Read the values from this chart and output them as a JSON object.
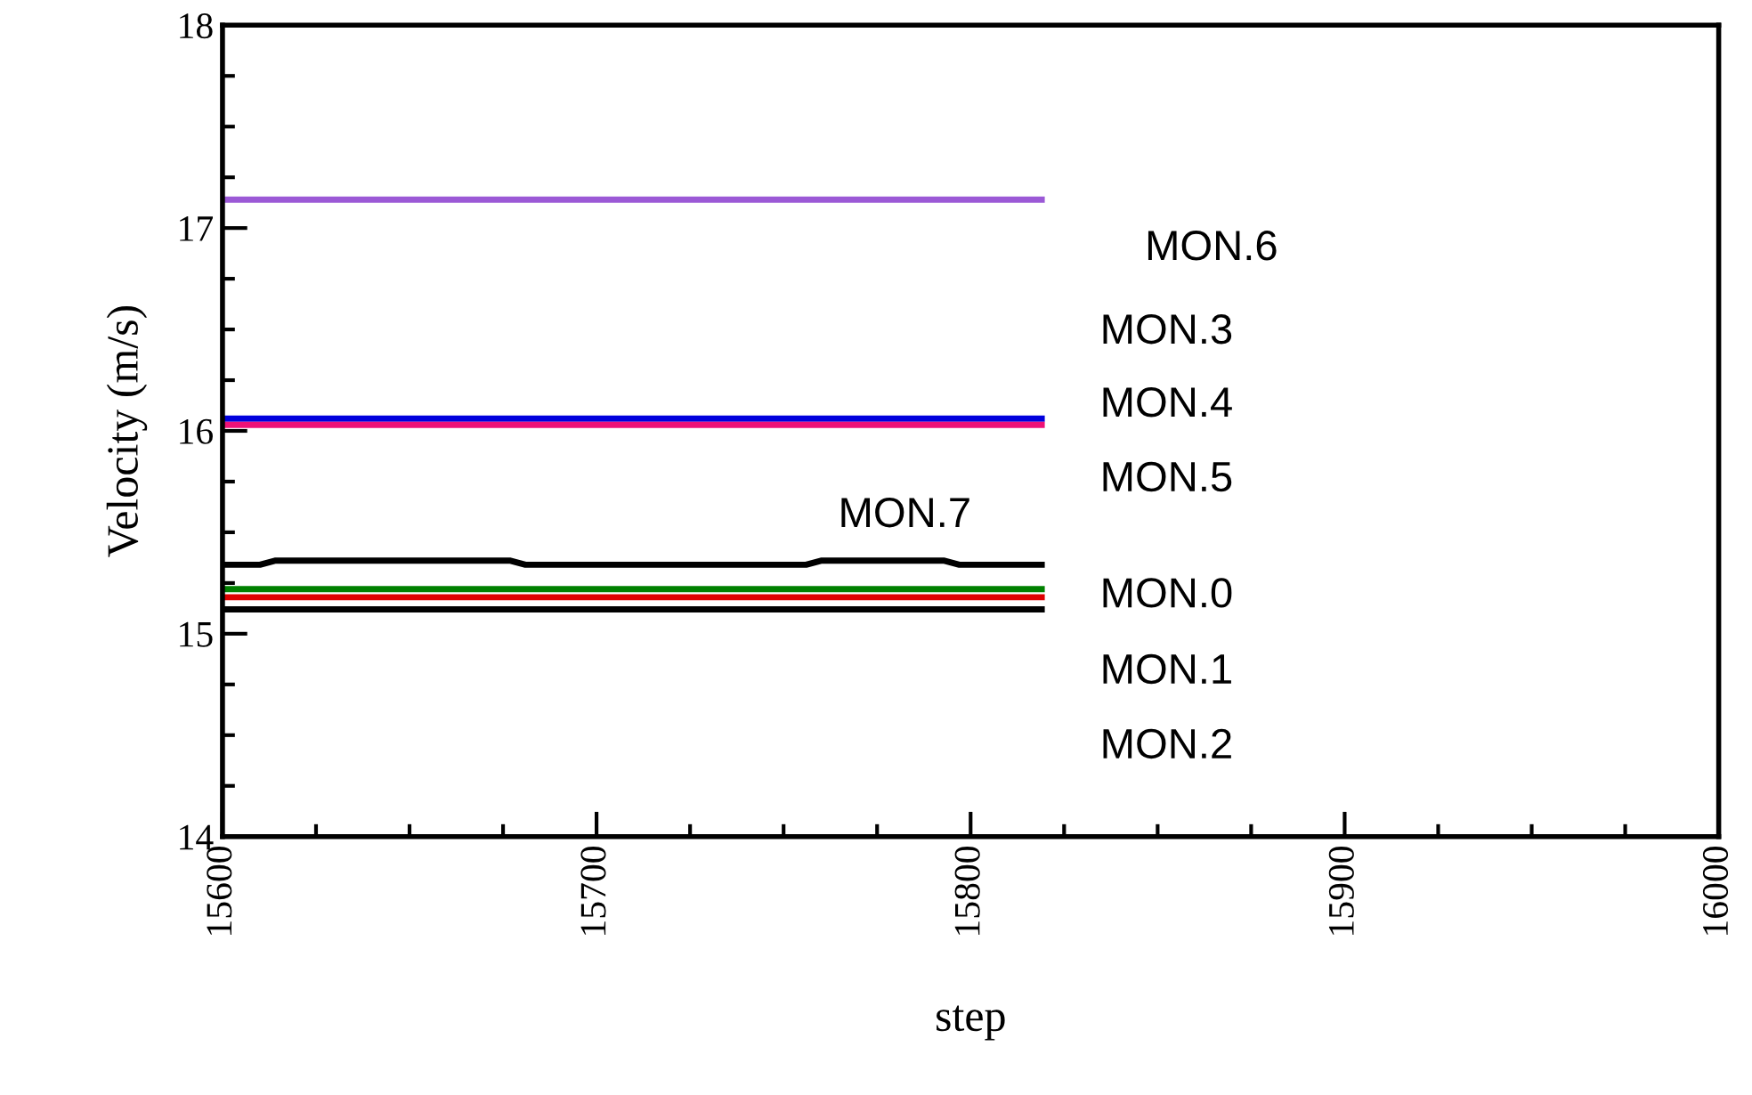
{
  "chart_data": {
    "type": "line",
    "xlabel": "step",
    "ylabel": "Velocity (m/s)",
    "xlim": [
      15600,
      16000
    ],
    "xticks": [
      15600,
      15700,
      15800,
      15900,
      16000
    ],
    "ylim": [
      14,
      18
    ],
    "yticks": [
      14,
      15,
      16,
      17,
      18
    ],
    "grid": false,
    "legend": false,
    "marker": "none",
    "line_style": "solid",
    "series": [
      {
        "color": "#9b59d6",
        "x": [
          15600,
          15819
        ],
        "values": [
          17.14,
          17.14
        ]
      },
      {
        "color": "#0000dd",
        "x": [
          15600,
          15819
        ],
        "values": [
          16.06,
          16.06
        ]
      },
      {
        "color": "#ee1177",
        "x": [
          15600,
          15819
        ],
        "values": [
          16.03,
          16.03
        ]
      },
      {
        "color": "#000000",
        "x": [
          15600,
          15610,
          15614,
          15677,
          15681,
          15756,
          15760,
          15793,
          15797,
          15819
        ],
        "values": [
          15.34,
          15.34,
          15.36,
          15.36,
          15.34,
          15.34,
          15.36,
          15.36,
          15.34,
          15.34
        ]
      },
      {
        "color": "#008000",
        "x": [
          15600,
          15819
        ],
        "values": [
          15.22,
          15.22
        ]
      },
      {
        "color": "#dd0000",
        "x": [
          15600,
          15819
        ],
        "values": [
          15.18,
          15.18
        ]
      },
      {
        "color": "#000000",
        "x": [
          15600,
          15819
        ],
        "values": [
          15.12,
          15.12
        ]
      }
    ],
    "annotations": [
      "MON.6",
      "MON.3",
      "MON.4",
      "MON.5",
      "MON.7",
      "MON.0",
      "MON.1",
      "MON.2"
    ]
  }
}
